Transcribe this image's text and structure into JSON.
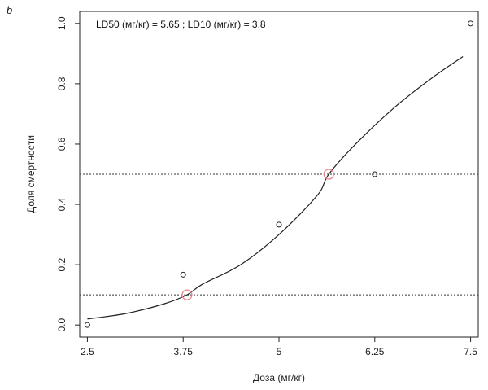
{
  "panel_label": "b",
  "colors": {
    "curve": "#222222",
    "points": "#222222",
    "highlight": "#e8868c",
    "ref_lines": "#333333"
  },
  "chart_data": {
    "type": "scatter",
    "annotation": "LD50 (мг/кг) = 5.65 ; LD10 (мг/кг) = 3.8",
    "xlabel": "Доза (мг/кг)",
    "ylabel": "Доля смертности",
    "xlim": [
      2.4,
      7.6
    ],
    "ylim": [
      -0.04,
      1.04
    ],
    "x_ticks": [
      2.5,
      3.75,
      5,
      6.25,
      7.5
    ],
    "x_tick_labels": [
      "2.5",
      "3.75",
      "5",
      "6.25",
      "7.5"
    ],
    "y_ticks": [
      0.0,
      0.2,
      0.4,
      0.6,
      0.8,
      1.0
    ],
    "y_tick_labels": [
      "0.0",
      "0.2",
      "0.4",
      "0.6",
      "0.8",
      "1.0"
    ],
    "points": [
      {
        "x": 2.5,
        "y": 0.0
      },
      {
        "x": 3.75,
        "y": 0.167
      },
      {
        "x": 5.0,
        "y": 0.333
      },
      {
        "x": 6.25,
        "y": 0.5
      },
      {
        "x": 7.5,
        "y": 1.0
      }
    ],
    "fitted_curve": {
      "x": [
        2.5,
        3.0,
        3.5,
        3.8,
        4.0,
        4.5,
        5.0,
        5.5,
        5.65,
        6.0,
        6.5,
        7.0,
        7.4
      ],
      "y": [
        0.02,
        0.038,
        0.07,
        0.1,
        0.135,
        0.2,
        0.3,
        0.43,
        0.5,
        0.6,
        0.72,
        0.82,
        0.89
      ]
    },
    "highlighted_points": [
      {
        "label": "LD10",
        "x": 3.8,
        "y": 0.1
      },
      {
        "label": "LD50",
        "x": 5.65,
        "y": 0.5
      }
    ],
    "reference_lines_y": [
      0.1,
      0.5
    ],
    "grid": false
  }
}
